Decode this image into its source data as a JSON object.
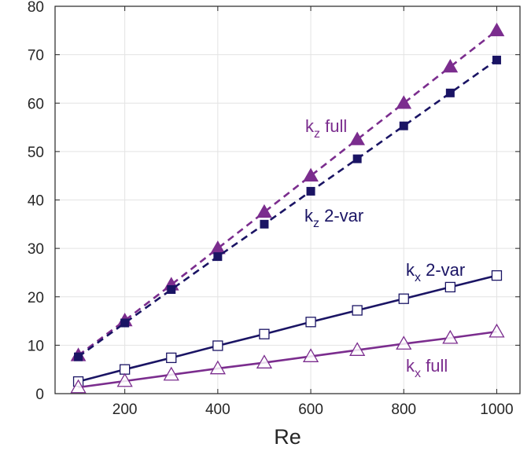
{
  "chart_data": {
    "type": "line",
    "xlabel": "Re",
    "ylabel": "",
    "xlim": [
      50,
      1050
    ],
    "ylim": [
      0,
      80
    ],
    "grid": true,
    "legend": "none",
    "xticks": [
      200,
      400,
      600,
      800,
      1000
    ],
    "yticks": [
      0,
      10,
      20,
      30,
      40,
      50,
      60,
      70,
      80
    ],
    "colors": {
      "purple": "#7b2d8e",
      "navy": "#1a1464",
      "axis": "#262626",
      "grid": "#e3e3e3"
    },
    "series": [
      {
        "key": "kz_full",
        "x": [
          100,
          200,
          300,
          400,
          500,
          600,
          700,
          800,
          900,
          1000
        ],
        "y": [
          7.9,
          15.1,
          22.5,
          30.0,
          37.5,
          45.0,
          52.5,
          60.0,
          67.5,
          75.0
        ],
        "color": "#7b2d8e",
        "line": "dashed",
        "marker": "triangle-filled"
      },
      {
        "key": "kz_2var",
        "x": [
          100,
          200,
          300,
          400,
          500,
          600,
          700,
          800,
          900,
          1000
        ],
        "y": [
          7.6,
          14.6,
          21.5,
          28.3,
          35.0,
          41.8,
          48.5,
          55.3,
          62.1,
          68.9
        ],
        "color": "#1a1464",
        "line": "dashed",
        "marker": "square-filled"
      },
      {
        "key": "kx_2var",
        "x": [
          100,
          200,
          300,
          400,
          500,
          600,
          700,
          800,
          900,
          1000
        ],
        "y": [
          2.5,
          5.0,
          7.4,
          9.9,
          12.3,
          14.8,
          17.2,
          19.6,
          22.0,
          24.4
        ],
        "color": "#1a1464",
        "line": "solid",
        "marker": "square-open"
      },
      {
        "key": "kx_full",
        "x": [
          100,
          200,
          300,
          400,
          500,
          600,
          700,
          800,
          900,
          1000
        ],
        "y": [
          1.3,
          2.6,
          3.9,
          5.2,
          6.4,
          7.7,
          9.0,
          10.3,
          11.5,
          12.8
        ],
        "color": "#7b2d8e",
        "line": "solid",
        "marker": "triangle-open"
      }
    ],
    "annotations": [
      {
        "key": "kz_full",
        "base": "k",
        "sub": "z",
        "rest": " full",
        "color": "#7b2d8e"
      },
      {
        "key": "kz_2var",
        "base": "k",
        "sub": "z",
        "rest": " 2-var",
        "color": "#1a1464"
      },
      {
        "key": "kx_2var",
        "base": "k",
        "sub": "x",
        "rest": " 2-var",
        "color": "#1a1464"
      },
      {
        "key": "kx_full",
        "base": "k",
        "sub": "x",
        "rest": " full",
        "color": "#7b2d8e"
      }
    ]
  }
}
